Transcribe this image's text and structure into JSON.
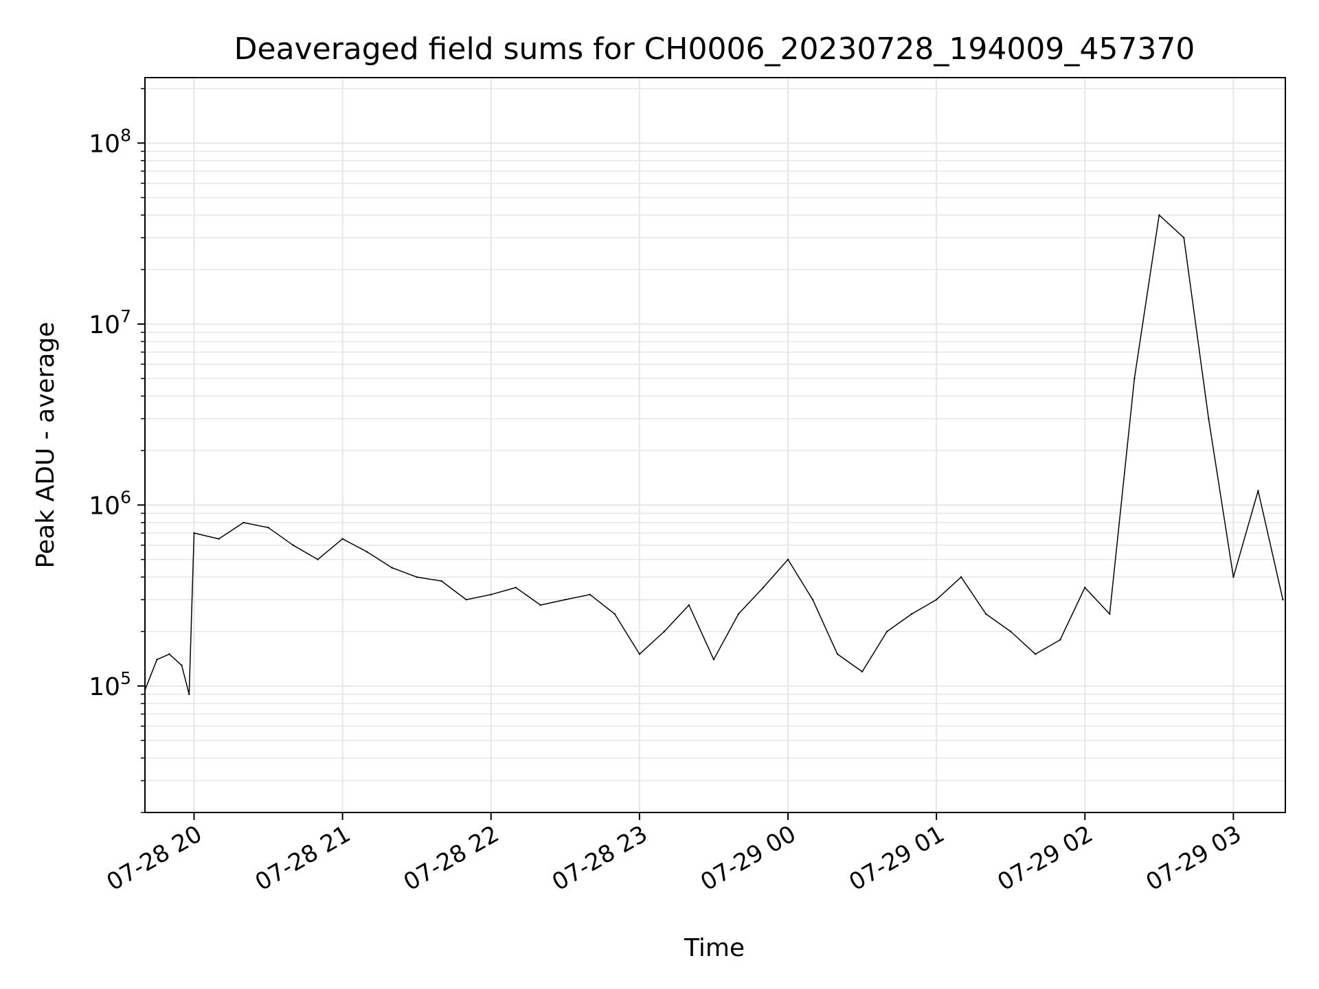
{
  "chart_data": {
    "type": "line",
    "title": "Deaveraged field sums for CH0006_20230728_194009_457370",
    "xlabel": "Time",
    "ylabel": "Peak ADU - average",
    "xlim": [
      "2023-07-28T19:40:09",
      "2023-07-29T03:21:00"
    ],
    "ylim": [
      20000,
      230000000
    ],
    "y_scale": "log",
    "grid": true,
    "line_color": "#000000",
    "grid_color": "#e6e6e6",
    "x_ticks": [
      {
        "at": "2023-07-28T20:00:00",
        "label": "07-28 20"
      },
      {
        "at": "2023-07-28T21:00:00",
        "label": "07-28 21"
      },
      {
        "at": "2023-07-28T22:00:00",
        "label": "07-28 22"
      },
      {
        "at": "2023-07-28T23:00:00",
        "label": "07-28 23"
      },
      {
        "at": "2023-07-29T00:00:00",
        "label": "07-29 00"
      },
      {
        "at": "2023-07-29T01:00:00",
        "label": "07-29 01"
      },
      {
        "at": "2023-07-29T02:00:00",
        "label": "07-29 02"
      },
      {
        "at": "2023-07-29T03:00:00",
        "label": "07-29 03"
      }
    ],
    "y_ticks": [
      {
        "value": 100000,
        "base": "10",
        "exp": "5"
      },
      {
        "value": 1000000,
        "base": "10",
        "exp": "6"
      },
      {
        "value": 10000000,
        "base": "10",
        "exp": "7"
      },
      {
        "value": 100000000,
        "base": "10",
        "exp": "8"
      }
    ],
    "series": [
      {
        "x": [
          "2023-07-28T19:40:09",
          "2023-07-28T19:45:00",
          "2023-07-28T19:50:00",
          "2023-07-28T19:55:00",
          "2023-07-28T19:58:00",
          "2023-07-28T20:00:00",
          "2023-07-28T20:10:00",
          "2023-07-28T20:20:00",
          "2023-07-28T20:30:00",
          "2023-07-28T20:40:00",
          "2023-07-28T20:50:00",
          "2023-07-28T21:00:00",
          "2023-07-28T21:10:00",
          "2023-07-28T21:20:00",
          "2023-07-28T21:30:00",
          "2023-07-28T21:40:00",
          "2023-07-28T21:50:00",
          "2023-07-28T22:00:00",
          "2023-07-28T22:10:00",
          "2023-07-28T22:20:00",
          "2023-07-28T22:30:00",
          "2023-07-28T22:40:00",
          "2023-07-28T22:50:00",
          "2023-07-28T23:00:00",
          "2023-07-28T23:10:00",
          "2023-07-28T23:20:00",
          "2023-07-28T23:30:00",
          "2023-07-28T23:40:00",
          "2023-07-28T23:50:00",
          "2023-07-29T00:00:00",
          "2023-07-29T00:10:00",
          "2023-07-29T00:20:00",
          "2023-07-29T00:30:00",
          "2023-07-29T00:40:00",
          "2023-07-29T00:50:00",
          "2023-07-29T01:00:00",
          "2023-07-29T01:10:00",
          "2023-07-29T01:20:00",
          "2023-07-29T01:30:00",
          "2023-07-29T01:40:00",
          "2023-07-29T01:50:00",
          "2023-07-29T02:00:00",
          "2023-07-29T02:10:00",
          "2023-07-29T02:20:00",
          "2023-07-29T02:30:00",
          "2023-07-29T02:40:00",
          "2023-07-29T02:50:00",
          "2023-07-29T03:00:00",
          "2023-07-29T03:10:00",
          "2023-07-29T03:20:00"
        ],
        "y": [
          95000,
          140000,
          150000,
          130000,
          90000,
          700000,
          650000,
          800000,
          750000,
          600000,
          500000,
          650000,
          550000,
          450000,
          400000,
          380000,
          300000,
          320000,
          350000,
          280000,
          300000,
          320000,
          250000,
          150000,
          200000,
          280000,
          140000,
          250000,
          350000,
          500000,
          300000,
          150000,
          120000,
          200000,
          250000,
          300000,
          400000,
          250000,
          200000,
          150000,
          180000,
          350000,
          250000,
          5000000,
          40000000,
          30000000,
          3000000,
          400000,
          1200000,
          300000
        ]
      }
    ]
  }
}
